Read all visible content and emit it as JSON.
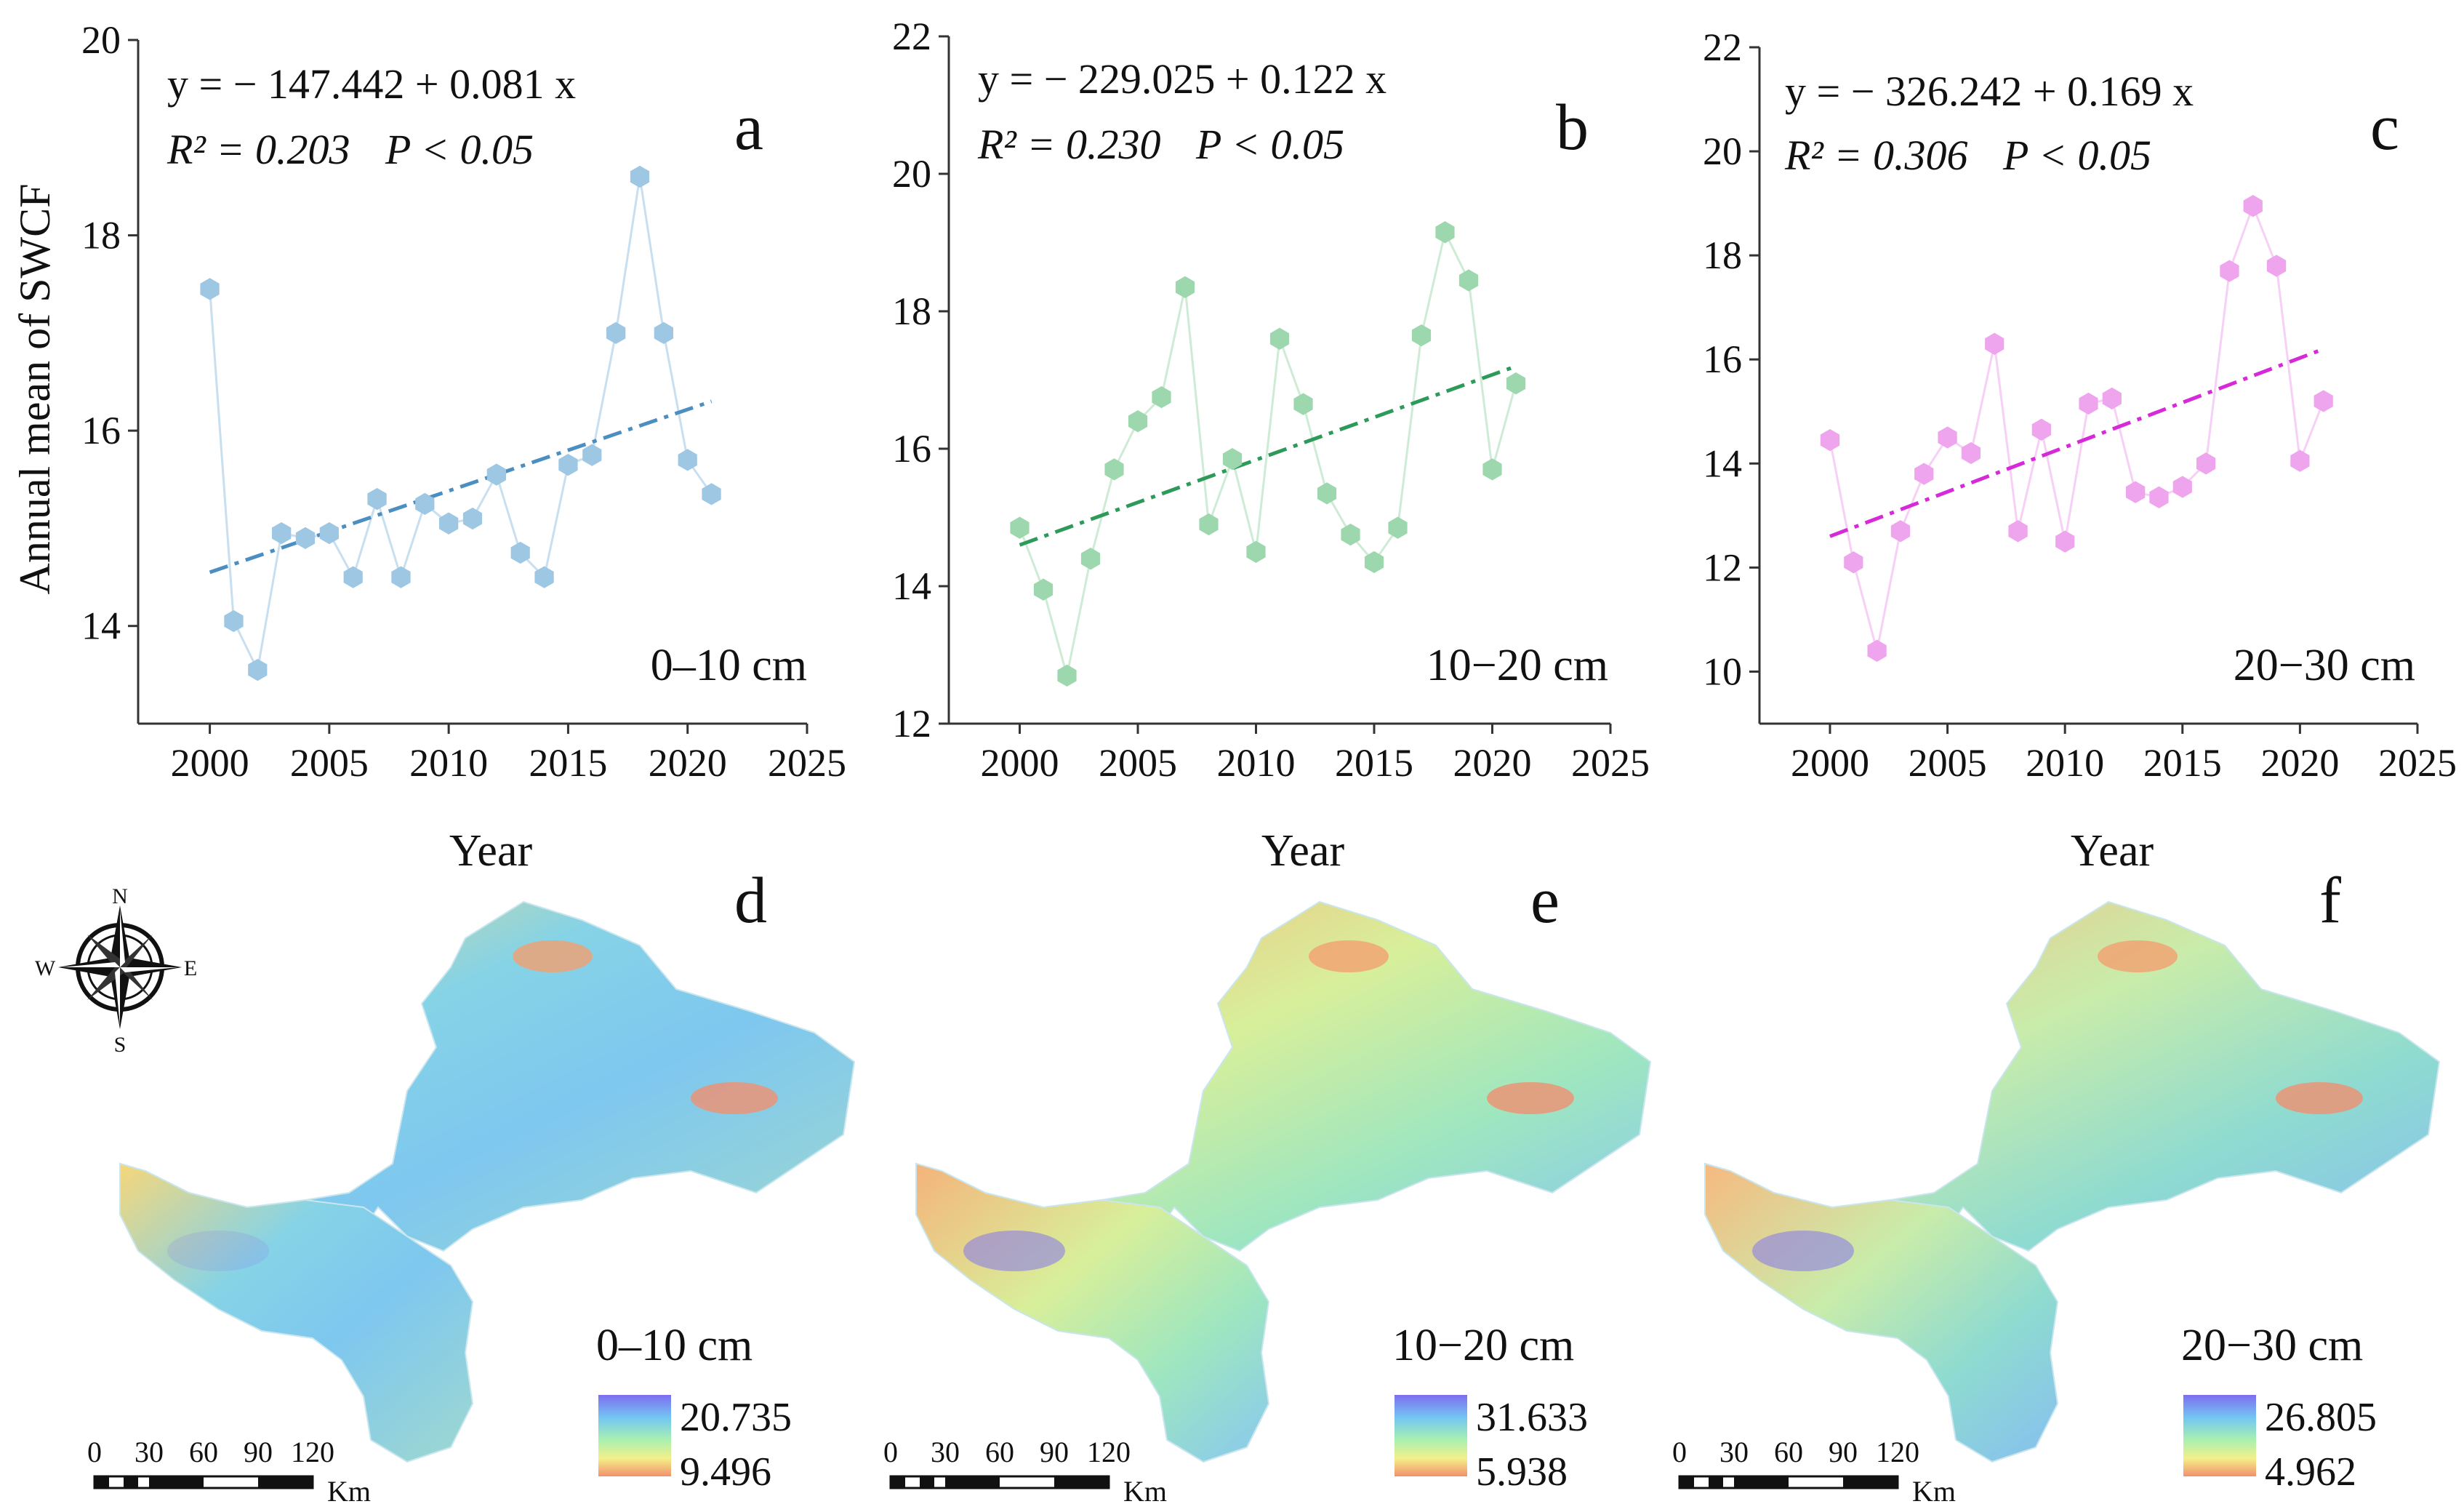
{
  "figure": {
    "ylabel": "Annual mean of SWCF",
    "xlabel": "Year",
    "compass": {
      "n": "N",
      "s": "S",
      "e": "E",
      "w": "W"
    },
    "scalebar": {
      "ticks": [
        "0",
        "30",
        "60",
        "90",
        "120"
      ],
      "unit": "Km"
    }
  },
  "chart_data": [
    {
      "type": "scatter",
      "panel": "a",
      "depth": "0–10 cm",
      "equation": "y = − 147.442 + 0.081 x",
      "r2_label": "R² = 0.203",
      "p_label": "P < 0.05",
      "x": [
        2000,
        2001,
        2002,
        2003,
        2004,
        2005,
        2006,
        2007,
        2008,
        2009,
        2010,
        2011,
        2012,
        2013,
        2014,
        2015,
        2016,
        2017,
        2018,
        2019,
        2020,
        2021
      ],
      "values": [
        17.45,
        14.05,
        13.55,
        14.95,
        14.9,
        14.95,
        14.5,
        15.3,
        14.5,
        15.25,
        15.05,
        15.1,
        15.55,
        14.75,
        14.5,
        15.65,
        15.75,
        17.0,
        18.6,
        17.0,
        15.7,
        15.35
      ],
      "trend": {
        "intercept": -147.442,
        "slope": 0.081,
        "display_range": [
          2000,
          2021
        ],
        "display_y": [
          14.55,
          16.3
        ]
      },
      "xlim": [
        1997,
        2025
      ],
      "ylim": [
        13,
        20
      ],
      "xticks": [
        "2000",
        "2005",
        "2010",
        "2015",
        "2020",
        "2025"
      ],
      "yticks": [
        "14",
        "16",
        "18",
        "20"
      ],
      "color": "#9ec7e3",
      "line_color": "#c8dff0",
      "trend_color": "#4b8ec2"
    },
    {
      "type": "scatter",
      "panel": "b",
      "depth": "10−20 cm",
      "equation": "y = − 229.025 + 0.122 x",
      "r2_label": "R² = 0.230",
      "p_label": "P < 0.05",
      "x": [
        2000,
        2001,
        2002,
        2003,
        2004,
        2005,
        2006,
        2007,
        2008,
        2009,
        2010,
        2011,
        2012,
        2013,
        2014,
        2015,
        2016,
        2017,
        2018,
        2019,
        2020,
        2021
      ],
      "values": [
        14.85,
        13.95,
        12.7,
        14.4,
        15.7,
        16.4,
        16.75,
        18.35,
        14.9,
        15.85,
        14.5,
        17.6,
        16.65,
        15.35,
        14.75,
        14.35,
        14.85,
        17.65,
        19.15,
        18.45,
        15.7,
        16.95
      ],
      "trend": {
        "intercept": -229.025,
        "slope": 0.122,
        "display_range": [
          2000,
          2021
        ],
        "display_y": [
          14.6,
          17.2
        ]
      },
      "xlim": [
        1997,
        2025
      ],
      "ylim": [
        12,
        22
      ],
      "xticks": [
        "2000",
        "2005",
        "2010",
        "2015",
        "2020",
        "2025"
      ],
      "yticks": [
        "12",
        "14",
        "16",
        "18",
        "20",
        "22"
      ],
      "color": "#9dd7ad",
      "line_color": "#cdebd5",
      "trend_color": "#2e9a5a"
    },
    {
      "type": "scatter",
      "panel": "c",
      "depth": "20−30 cm",
      "equation": "y = − 326.242 + 0.169 x",
      "r2_label": "R² = 0.306",
      "p_label": "P < 0.05",
      "x": [
        2000,
        2001,
        2002,
        2003,
        2004,
        2005,
        2006,
        2007,
        2008,
        2009,
        2010,
        2011,
        2012,
        2013,
        2014,
        2015,
        2016,
        2017,
        2018,
        2019,
        2020,
        2021
      ],
      "values": [
        14.45,
        12.1,
        10.4,
        12.7,
        13.8,
        14.5,
        14.2,
        16.3,
        12.7,
        14.65,
        12.5,
        15.15,
        15.25,
        13.45,
        13.35,
        13.55,
        14.0,
        17.7,
        18.95,
        17.8,
        14.05,
        15.2
      ],
      "trend": {
        "intercept": -326.242,
        "slope": 0.169,
        "display_range": [
          2000,
          2021
        ],
        "display_y": [
          12.6,
          16.2
        ]
      },
      "xlim": [
        1997,
        2025
      ],
      "ylim": [
        9,
        22
      ],
      "xticks": [
        "2000",
        "2005",
        "2010",
        "2015",
        "2020",
        "2025"
      ],
      "yticks": [
        "10",
        "12",
        "14",
        "16",
        "18",
        "20",
        "22"
      ],
      "color": "#efa5ee",
      "line_color": "#f6d0f5",
      "trend_color": "#d629d8"
    }
  ],
  "maps": [
    {
      "panel": "d",
      "depth": "0–10 cm",
      "max": "20.735",
      "min": "9.496"
    },
    {
      "panel": "e",
      "depth": "10−20 cm",
      "max": "31.633",
      "min": "5.938"
    },
    {
      "panel": "f",
      "depth": "20−30 cm",
      "max": "26.805",
      "min": "4.962"
    }
  ]
}
